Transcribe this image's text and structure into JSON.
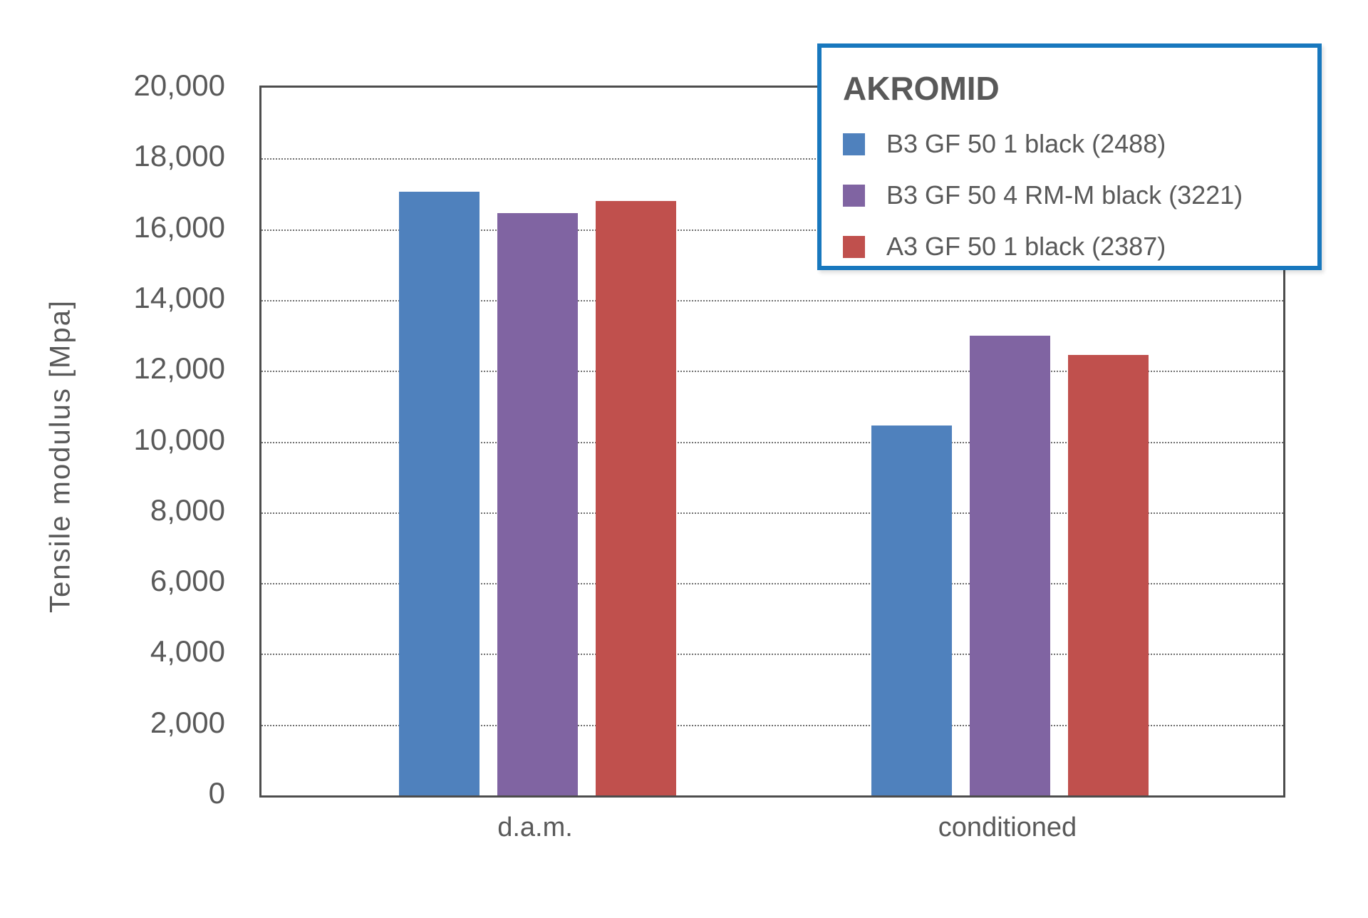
{
  "chart_data": {
    "type": "bar",
    "title": "",
    "xlabel": "",
    "ylabel": "Tensile modulus [Mpa]",
    "categories": [
      "d.a.m.",
      "conditioned"
    ],
    "series": [
      {
        "name": "B3 GF 50 1 black (2488)",
        "color": "#4F81BD",
        "values": [
          17050,
          10450
        ]
      },
      {
        "name": "B3 GF 50 4 RM-M black (3221)",
        "color": "#8064A2",
        "values": [
          16450,
          13000
        ]
      },
      {
        "name": "A3 GF 50 1 black (2387)",
        "color": "#C0504D",
        "values": [
          16800,
          12450
        ]
      }
    ],
    "ylim": [
      0,
      20000
    ],
    "ytick_step": 2000,
    "ytick_labels": [
      "0",
      "2,000",
      "4,000",
      "6,000",
      "8,000",
      "10,000",
      "12,000",
      "14,000",
      "16,000",
      "18,000",
      "20,000"
    ],
    "grid": "horizontal-dotted",
    "legend_position": "top-right-overlay"
  },
  "legend": {
    "title": "AKROMID"
  },
  "colors": {
    "text": "#595959",
    "axis_border": "#4d4d4d",
    "gridline": "#6f6f6f",
    "legend_border": "#1878be",
    "background": "#ffffff"
  }
}
